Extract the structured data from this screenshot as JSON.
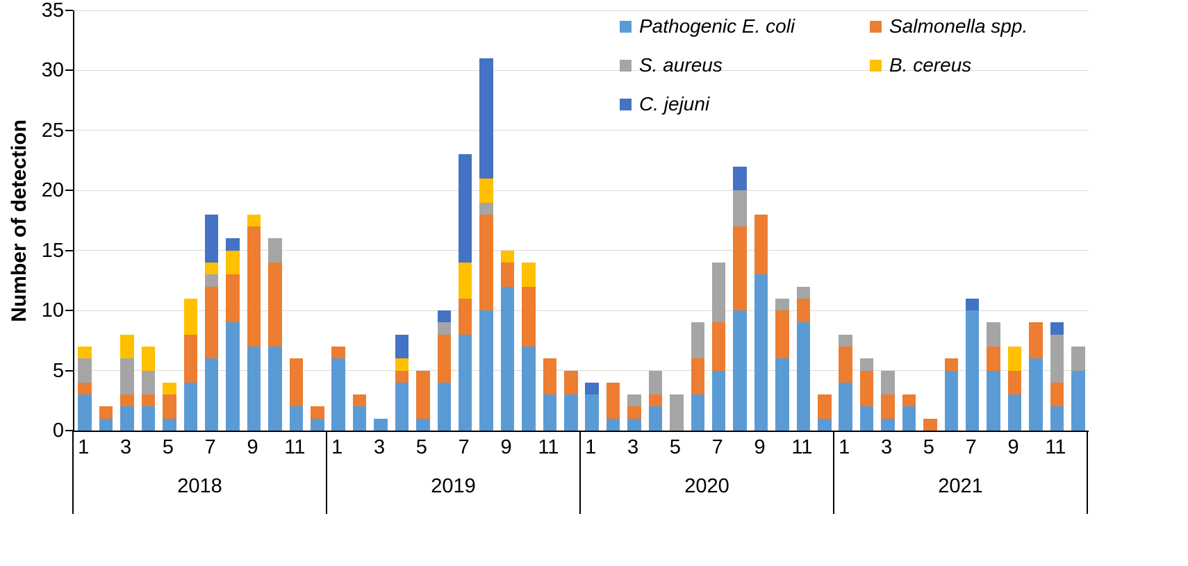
{
  "y_axis": {
    "label": "Number of detection",
    "tick_values": [
      0,
      5,
      10,
      15,
      20,
      25,
      30,
      35
    ]
  },
  "chart_data": {
    "type": "bar",
    "stacked": true,
    "title": "",
    "xlabel": "",
    "ylabel": "Number of detection",
    "ylim": [
      0,
      35
    ],
    "ytick_step": 5,
    "grid": true,
    "legend_position": "top-right-inside",
    "group_labels": [
      "2018",
      "2019",
      "2020",
      "2021"
    ],
    "months_per_group": [
      "1",
      "2",
      "3",
      "4",
      "5",
      "6",
      "7",
      "8",
      "9",
      "10",
      "11",
      "12"
    ],
    "x_tick_labels": [
      "1",
      "3",
      "5",
      "7",
      "9",
      "11"
    ],
    "axis_color": "#000000",
    "gridline_color": "#d9d9d9",
    "series": [
      {
        "name": "Pathogenic E. coli",
        "color": "#5B9BD5",
        "values": [
          3,
          1,
          2,
          2,
          1,
          4,
          6,
          9,
          7,
          7,
          2,
          1,
          6,
          2,
          1,
          4,
          1,
          4,
          8,
          10,
          12,
          7,
          3,
          3,
          3,
          1,
          1,
          2,
          0,
          3,
          5,
          10,
          13,
          6,
          9,
          1,
          4,
          2,
          1,
          2,
          0,
          5,
          10,
          5,
          3,
          6,
          2,
          5
        ]
      },
      {
        "name": "Salmonella spp.",
        "color": "#ED7D31",
        "values": [
          1,
          1,
          1,
          1,
          2,
          4,
          6,
          4,
          10,
          7,
          4,
          1,
          1,
          1,
          0,
          1,
          4,
          4,
          3,
          8,
          2,
          5,
          3,
          2,
          0,
          3,
          1,
          1,
          0,
          3,
          4,
          7,
          5,
          4,
          2,
          2,
          3,
          3,
          2,
          1,
          1,
          1,
          0,
          2,
          2,
          3,
          2,
          0
        ]
      },
      {
        "name": "S. aureus",
        "color": "#A5A5A5",
        "values": [
          2,
          0,
          3,
          2,
          0,
          0,
          1,
          0,
          0,
          2,
          0,
          0,
          0,
          0,
          0,
          0,
          0,
          1,
          0,
          1,
          0,
          0,
          0,
          0,
          0,
          0,
          1,
          2,
          3,
          3,
          5,
          3,
          0,
          1,
          1,
          0,
          1,
          1,
          2,
          0,
          0,
          0,
          0,
          2,
          0,
          0,
          4,
          2
        ]
      },
      {
        "name": "B. cereus",
        "color": "#FFC000",
        "values": [
          1,
          0,
          2,
          2,
          1,
          3,
          1,
          2,
          1,
          0,
          0,
          0,
          0,
          0,
          0,
          1,
          0,
          0,
          3,
          2,
          1,
          2,
          0,
          0,
          0,
          0,
          0,
          0,
          0,
          0,
          0,
          0,
          0,
          0,
          0,
          0,
          0,
          0,
          0,
          0,
          0,
          0,
          0,
          0,
          2,
          0,
          0,
          0
        ]
      },
      {
        "name": "C. jejuni",
        "color": "#4472C4",
        "values": [
          0,
          0,
          0,
          0,
          0,
          0,
          4,
          1,
          0,
          0,
          0,
          0,
          0,
          0,
          0,
          2,
          0,
          1,
          9,
          10,
          0,
          0,
          0,
          0,
          1,
          0,
          0,
          0,
          0,
          0,
          0,
          2,
          0,
          0,
          0,
          0,
          0,
          0,
          0,
          0,
          0,
          0,
          1,
          0,
          0,
          0,
          1,
          0
        ]
      }
    ]
  }
}
